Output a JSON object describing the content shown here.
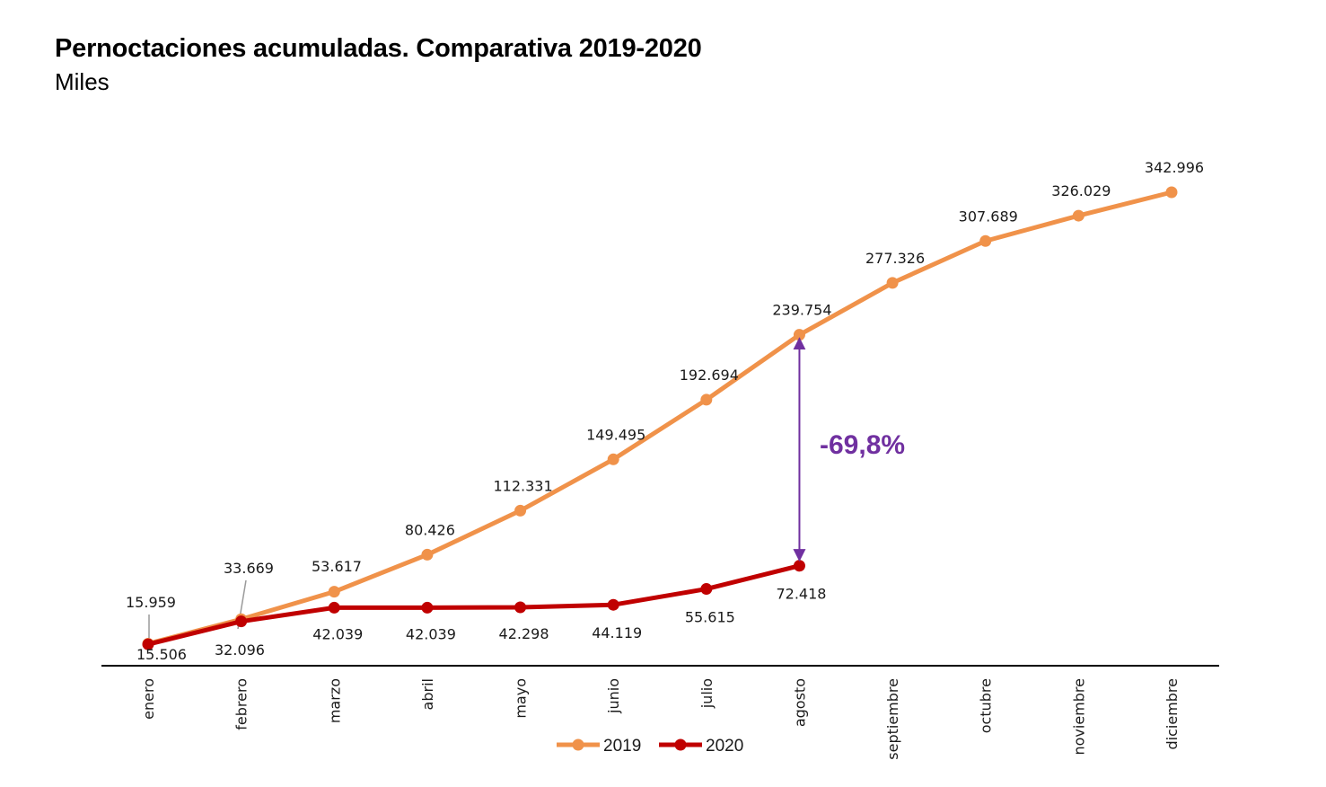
{
  "chart_data": {
    "type": "line",
    "title": "Pernoctaciones acumuladas. Comparativa 2019-2020",
    "subtitle": "Miles",
    "xlabel": "",
    "ylabel": "",
    "ylim": [
      0,
      343
    ],
    "grid": false,
    "legend_position": "bottom",
    "categories": [
      "enero",
      "febrero",
      "marzo",
      "abril",
      "mayo",
      "junio",
      "julio",
      "agosto",
      "septiembre",
      "octubre",
      "noviembre",
      "diciembre"
    ],
    "series": [
      {
        "name": "2019",
        "color": "#F0924A",
        "values": [
          15.959,
          33.669,
          53.617,
          80.426,
          112.331,
          149.495,
          192.694,
          239.754,
          277.326,
          307.689,
          326.029,
          342.996
        ],
        "labels": [
          "15.959",
          "33.669",
          "53.617",
          "80.426",
          "112.331",
          "149.495",
          "192.694",
          "239.754",
          "277.326",
          "307.689",
          "326.029",
          "342.996"
        ]
      },
      {
        "name": "2020",
        "color": "#C00000",
        "values": [
          15.506,
          32.096,
          42.039,
          42.039,
          42.298,
          44.119,
          55.615,
          72.418
        ],
        "labels": [
          "15.506",
          "32.096",
          "42.039",
          "42.039",
          "42.298",
          "44.119",
          "55.615",
          "72.418"
        ]
      }
    ],
    "annotations": [
      {
        "text": "-69,8%",
        "category": "agosto",
        "from_series": "2019",
        "to_series": "2020",
        "type": "double-arrow",
        "color": "#7030A0"
      }
    ]
  }
}
